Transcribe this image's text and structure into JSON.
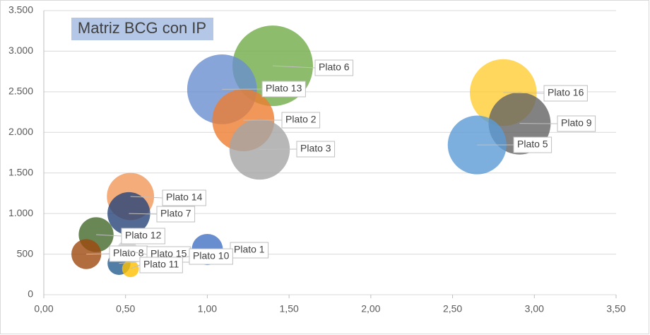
{
  "chart_data": {
    "type": "bubble",
    "title": "Matriz BCG con IP",
    "xlim": [
      0,
      3.5
    ],
    "xticks": [
      {
        "value": 0,
        "label": "0,00"
      },
      {
        "value": 0.5,
        "label": "0,50"
      },
      {
        "value": 1,
        "label": "1,00"
      },
      {
        "value": 1.5,
        "label": "1,50"
      },
      {
        "value": 2,
        "label": "2,00"
      },
      {
        "value": 2.5,
        "label": "2,50"
      },
      {
        "value": 3,
        "label": "3,00"
      },
      {
        "value": 3.5,
        "label": "3,50"
      }
    ],
    "ylim": [
      0,
      3500
    ],
    "yticks": [
      0,
      500,
      {
        "value": 1000,
        "label": "1.000"
      },
      {
        "value": 1500,
        "label": "1.500"
      },
      {
        "value": 2000,
        "label": "2.000"
      },
      {
        "value": 2500,
        "label": "2.500"
      },
      {
        "value": 3000,
        "label": "3.000"
      },
      {
        "value": 3500,
        "label": "3.500"
      }
    ],
    "grid": true,
    "series": [
      {
        "name": "Plato 6",
        "color": "#70ad47",
        "x": [
          1.4
        ],
        "values": [
          2820
        ],
        "sizes": [
          32
        ]
      },
      {
        "name": "Plato 13",
        "color": "#698ed0",
        "x": [
          1.09
        ],
        "values": [
          2530
        ],
        "sizes": [
          24
        ]
      },
      {
        "name": "Plato 2",
        "color": "#ed7d31",
        "x": [
          1.22
        ],
        "values": [
          2150
        ],
        "sizes": [
          19
        ]
      },
      {
        "name": "Plato 3",
        "color": "#a5a5a5",
        "x": [
          1.32
        ],
        "values": [
          1790
        ],
        "sizes": [
          18
        ]
      },
      {
        "name": "Plato 16",
        "color": "#ffcd33",
        "x": [
          2.81
        ],
        "values": [
          2490
        ],
        "sizes": [
          22
        ]
      },
      {
        "name": "Plato 9",
        "color": "#636363",
        "x": [
          2.91
        ],
        "values": [
          2110
        ],
        "sizes": [
          19
        ]
      },
      {
        "name": "Plato 5",
        "color": "#5b9bd5",
        "x": [
          2.65
        ],
        "values": [
          1845
        ],
        "sizes": [
          17
        ]
      },
      {
        "name": "Plato 14",
        "color": "#f1975a",
        "x": [
          0.53
        ],
        "values": [
          1210
        ],
        "sizes": [
          11
        ]
      },
      {
        "name": "Plato 7",
        "color": "#264478",
        "x": [
          0.52
        ],
        "values": [
          1000
        ],
        "sizes": [
          9
        ]
      },
      {
        "name": "Plato 12",
        "color": "#43682b",
        "x": [
          0.32
        ],
        "values": [
          740
        ],
        "sizes": [
          6
        ]
      },
      {
        "name": "Plato 8",
        "color": "#9e480e",
        "x": [
          0.26
        ],
        "values": [
          500
        ],
        "sizes": [
          4.4
        ]
      },
      {
        "name": "Plato 1",
        "color": "#4472c4",
        "x": [
          1.0
        ],
        "values": [
          557
        ],
        "sizes": [
          4.8
        ]
      },
      {
        "name": "Plato 15",
        "color": "#d0d0d0",
        "x": [
          0.51
        ],
        "values": [
          540
        ],
        "sizes": [
          2.2
        ]
      },
      {
        "name": "Plato 10",
        "color": "#255e91",
        "x": [
          0.46
        ],
        "values": [
          385
        ],
        "sizes": [
          2.6
        ]
      },
      {
        "name": "Plato 11",
        "color": "#ffc000",
        "x": [
          0.53
        ],
        "values": [
          320
        ],
        "sizes": [
          1.4
        ]
      }
    ]
  }
}
